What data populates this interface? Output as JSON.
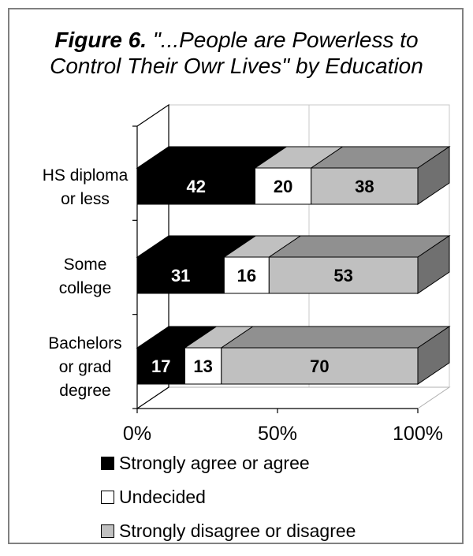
{
  "chart_data": {
    "type": "bar",
    "orientation": "horizontal",
    "stacked": true,
    "three_d": true,
    "title_lead": "Figure 6.",
    "title_rest": "\"...People are Powerless to Control Their Owr Lives\" by Education",
    "categories": [
      [
        "HS diploma",
        "or less"
      ],
      [
        "Some",
        "college"
      ],
      [
        "Bachelors",
        "or grad",
        "degree"
      ]
    ],
    "series": [
      {
        "name": "Strongly agree or agree",
        "values": [
          42,
          31,
          17
        ],
        "color": "#000000",
        "label_color": "#ffffff"
      },
      {
        "name": "Undecided",
        "values": [
          20,
          16,
          13
        ],
        "color": "#ffffff",
        "label_color": "#000000"
      },
      {
        "name": "Strongly disagree or disagree",
        "values": [
          38,
          53,
          70
        ],
        "color": "#c0c0c0",
        "label_color": "#000000"
      }
    ],
    "x_ticks": [
      "0%",
      "50%",
      "100%"
    ],
    "xlim": [
      0,
      100
    ],
    "legend_position": "bottom"
  }
}
